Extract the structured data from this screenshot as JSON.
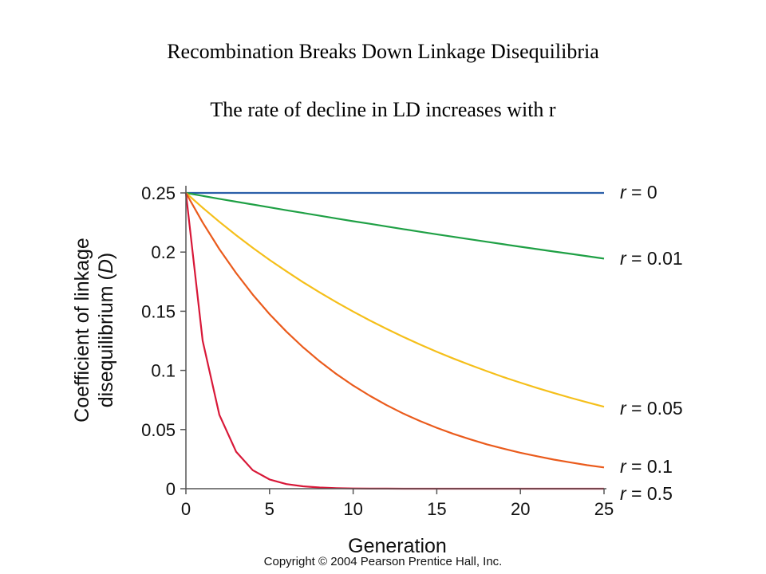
{
  "title": "Recombination Breaks Down Linkage Disequilibria",
  "subtitle": "The rate of decline in LD increases with r",
  "copyright": "Copyright © 2004 Pearson Prentice Hall, Inc.",
  "chart_data": {
    "type": "line",
    "xlabel": "Generation",
    "ylabel_line1": "Coefficient of linkage",
    "ylabel_line2_prefix": "disequilibrium (",
    "ylabel_line2_var": "D",
    "ylabel_line2_suffix": ")",
    "xlim": [
      0,
      25
    ],
    "ylim": [
      0,
      0.25
    ],
    "x_ticks": [
      0,
      5,
      10,
      15,
      20,
      25
    ],
    "x_tick_labels": [
      "0",
      "5",
      "10",
      "15",
      "20",
      "25"
    ],
    "y_ticks": [
      0,
      0.05,
      0.1,
      0.15,
      0.2,
      0.25
    ],
    "y_tick_labels": [
      "0",
      "0.05",
      "0.1",
      "0.15",
      "0.2",
      "0.25"
    ],
    "grid": false,
    "x": [
      0,
      1,
      2,
      3,
      4,
      5,
      6,
      7,
      8,
      9,
      10,
      11,
      12,
      13,
      14,
      15,
      16,
      17,
      18,
      19,
      20,
      21,
      22,
      23,
      24,
      25
    ],
    "series": [
      {
        "name": "r = 0",
        "var": "r",
        "eq": " = 0",
        "color": "#2a5fa8",
        "values": [
          0.25,
          0.25,
          0.25,
          0.25,
          0.25,
          0.25,
          0.25,
          0.25,
          0.25,
          0.25,
          0.25,
          0.25,
          0.25,
          0.25,
          0.25,
          0.25,
          0.25,
          0.25,
          0.25,
          0.25,
          0.25,
          0.25,
          0.25,
          0.25,
          0.25,
          0.25
        ]
      },
      {
        "name": "r = 0.01",
        "var": "r",
        "eq": " = 0.01",
        "color": "#1fa045",
        "values": [
          0.25,
          0.2475,
          0.245,
          0.2426,
          0.2402,
          0.2378,
          0.2354,
          0.2331,
          0.2307,
          0.2284,
          0.2261,
          0.2239,
          0.2216,
          0.2194,
          0.2172,
          0.215,
          0.2129,
          0.2108,
          0.2087,
          0.2066,
          0.2045,
          0.2025,
          0.2005,
          0.1985,
          0.1965,
          0.1945
        ]
      },
      {
        "name": "r = 0.05",
        "var": "r",
        "eq": " = 0.05",
        "color": "#f5bf1a",
        "values": [
          0.25,
          0.2375,
          0.2256,
          0.2143,
          0.2036,
          0.1934,
          0.1838,
          0.1746,
          0.1659,
          0.1576,
          0.1497,
          0.1422,
          0.1351,
          0.1283,
          0.1219,
          0.1158,
          0.11,
          0.1045,
          0.0993,
          0.0943,
          0.0896,
          0.0851,
          0.0809,
          0.0768,
          0.073,
          0.0693
        ]
      },
      {
        "name": "r = 0.1",
        "var": "r",
        "eq": " = 0.1",
        "color": "#ea5b1c",
        "values": [
          0.25,
          0.225,
          0.2025,
          0.1823,
          0.164,
          0.1476,
          0.1329,
          0.1196,
          0.1076,
          0.0969,
          0.0872,
          0.0785,
          0.0706,
          0.0635,
          0.0572,
          0.0515,
          0.0463,
          0.0417,
          0.0375,
          0.0338,
          0.0304,
          0.0274,
          0.0246,
          0.0222,
          0.0199,
          0.018
        ]
      },
      {
        "name": "r = 0.5",
        "var": "r",
        "eq": " = 0.5",
        "color": "#d81838",
        "values": [
          0.25,
          0.125,
          0.0625,
          0.0313,
          0.0156,
          0.0078,
          0.0039,
          0.002,
          0.001,
          0.0005,
          0.0002,
          0.0001,
          0.0001,
          0,
          0,
          0,
          0,
          0,
          0,
          0,
          0,
          0,
          0,
          0,
          0,
          0
        ]
      }
    ]
  }
}
